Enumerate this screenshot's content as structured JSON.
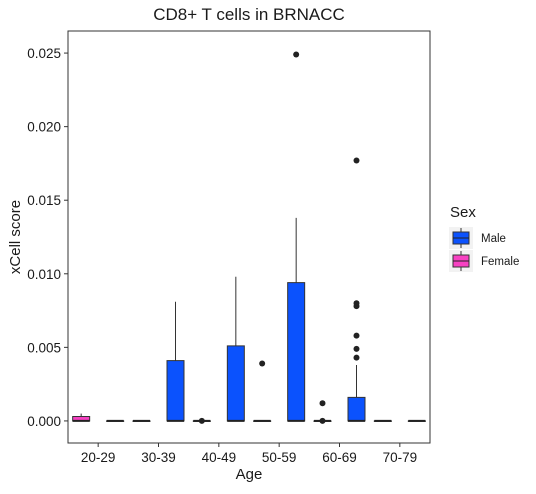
{
  "chart_data": {
    "type": "boxplot",
    "title": "CD8+ T cells in BRNACC",
    "xlabel": "Age",
    "ylabel": "xCell score",
    "categories": [
      "20-29",
      "30-39",
      "40-49",
      "50-59",
      "60-69",
      "70-79"
    ],
    "ylim": [
      -0.0015,
      0.0265
    ],
    "yticks": [
      0.0,
      0.005,
      0.01,
      0.015,
      0.02,
      0.025
    ],
    "ytick_labels": [
      "0.000",
      "0.005",
      "0.010",
      "0.015",
      "0.020",
      "0.025"
    ],
    "grid": false,
    "legend": {
      "title": "Sex",
      "placement": "right",
      "entries": [
        "Male",
        "Female"
      ]
    },
    "colors": {
      "Male": "#0b52fd",
      "Female": "#f741c2"
    },
    "boxes": [
      {
        "category": "20-29",
        "group": "Female",
        "min": 0.0,
        "q1": 0.0,
        "median": 0.0,
        "q3": 0.0003,
        "max": 0.0005,
        "outliers": []
      },
      {
        "category": "20-29",
        "group": "Male",
        "min": 0.0,
        "q1": 0.0,
        "median": 0.0,
        "q3": 0.0,
        "max": 0.0,
        "outliers": []
      },
      {
        "category": "30-39",
        "group": "Female",
        "min": 0.0,
        "q1": 0.0,
        "median": 0.0,
        "q3": 0.0,
        "max": 0.0,
        "outliers": []
      },
      {
        "category": "30-39",
        "group": "Male",
        "min": 0.0,
        "q1": 0.0,
        "median": 0.0,
        "q3": 0.0041,
        "max": 0.0081,
        "outliers": []
      },
      {
        "category": "40-49",
        "group": "Female",
        "min": 0.0,
        "q1": 0.0,
        "median": 0.0,
        "q3": 0.0,
        "max": 0.0,
        "outliers": [
          0.0
        ]
      },
      {
        "category": "40-49",
        "group": "Male",
        "min": 0.0,
        "q1": 0.0,
        "median": 0.0,
        "q3": 0.0051,
        "max": 0.0098,
        "outliers": []
      },
      {
        "category": "50-59",
        "group": "Female",
        "min": 0.0,
        "q1": 0.0,
        "median": 0.0,
        "q3": 0.0,
        "max": 0.0,
        "outliers": [
          0.0039
        ]
      },
      {
        "category": "50-59",
        "group": "Male",
        "min": 0.0,
        "q1": 0.0,
        "median": 0.0,
        "q3": 0.0094,
        "max": 0.0138,
        "outliers": [
          0.0249
        ]
      },
      {
        "category": "60-69",
        "group": "Female",
        "min": 0.0,
        "q1": 0.0,
        "median": 0.0,
        "q3": 0.0,
        "max": 0.0,
        "outliers": [
          0.0012,
          0.0
        ]
      },
      {
        "category": "60-69",
        "group": "Male",
        "min": 0.0,
        "q1": 0.0,
        "median": 0.0,
        "q3": 0.0016,
        "max": 0.0038,
        "outliers": [
          0.0177,
          0.008,
          0.0078,
          0.0058,
          0.0049,
          0.0043
        ]
      },
      {
        "category": "70-79",
        "group": "Female",
        "min": 0.0,
        "q1": 0.0,
        "median": 0.0,
        "q3": 0.0,
        "max": 0.0,
        "outliers": []
      },
      {
        "category": "70-79",
        "group": "Male",
        "min": 0.0,
        "q1": 0.0,
        "median": 0.0,
        "q3": 0.0,
        "max": 0.0,
        "outliers": []
      }
    ]
  }
}
